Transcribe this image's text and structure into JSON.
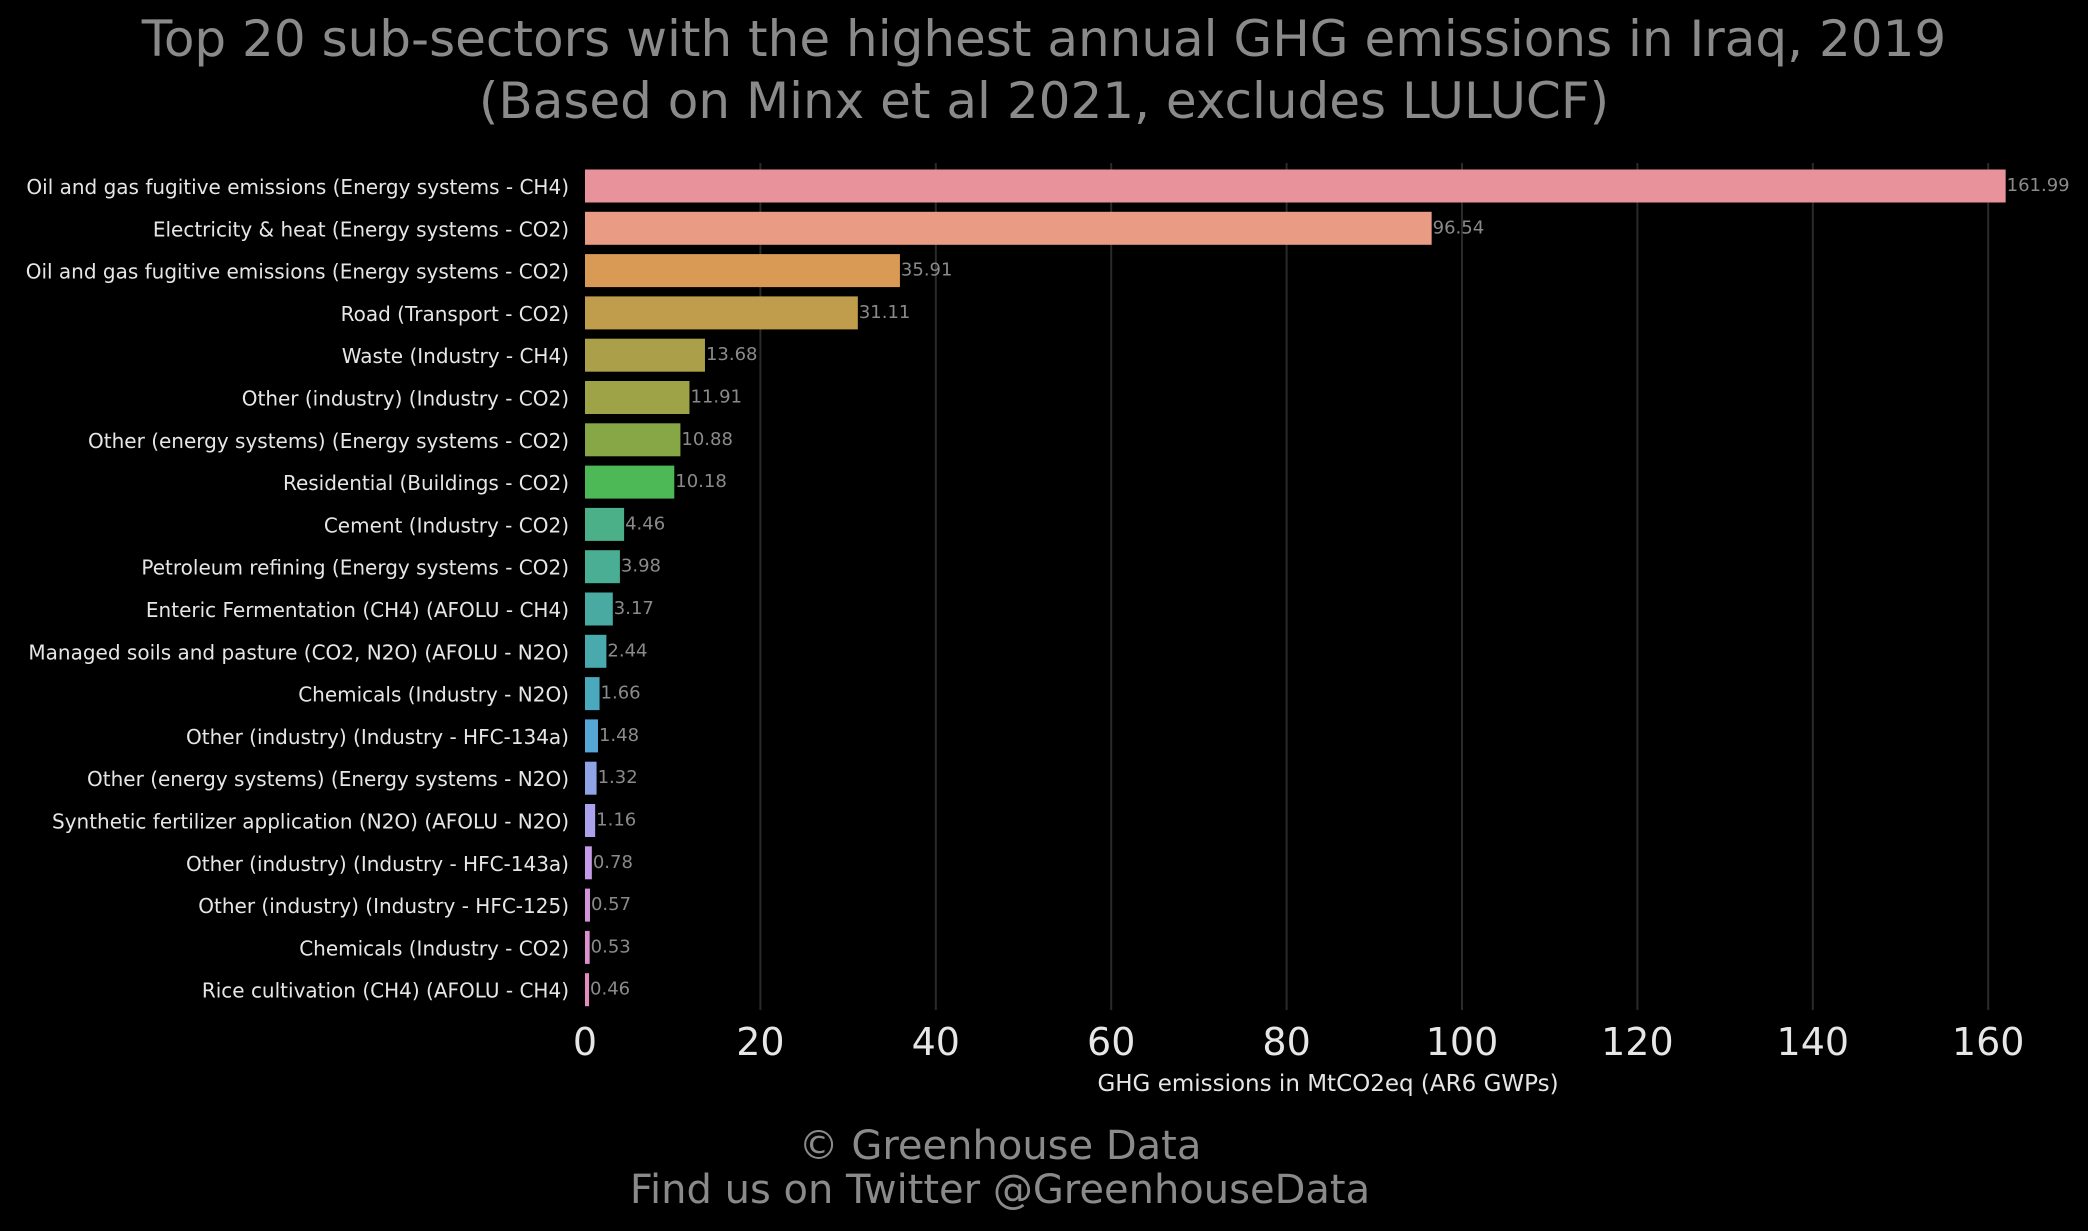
{
  "title_line1": "Top 20 sub-sectors with the highest annual GHG emissions in Iraq, 2019",
  "title_line2": "(Based on Minx et al 2021, excludes LULUCF)",
  "footer_line1": "© Greenhouse Data",
  "footer_line2": "Find us on Twitter @GreenhouseData",
  "colors": {
    "background": "#000000",
    "title": "#8a8a8a",
    "grid": "#2a2a2a",
    "category_label": "#e6e6e6",
    "tick_label": "#e6e6e6",
    "value_label": "#8a8a8a"
  },
  "chart_data": {
    "type": "bar",
    "orientation": "horizontal",
    "title": "Top 20 sub-sectors with the highest annual GHG emissions in Iraq, 2019\n(Based on Minx et al 2021, excludes LULUCF)",
    "xlabel": "GHG emissions in MtCO2eq (AR6 GWPs)",
    "ylabel": "",
    "xlim": [
      0,
      170
    ],
    "xticks": [
      0,
      20,
      40,
      60,
      80,
      100,
      120,
      140,
      160
    ],
    "grid": "vertical",
    "categories": [
      "Oil and gas fugitive emissions (Energy systems - CH4)",
      "Electricity & heat (Energy systems - CO2)",
      "Oil and gas fugitive emissions (Energy systems - CO2)",
      "Road (Transport - CO2)",
      "Waste (Industry - CH4)",
      "Other (industry) (Industry - CO2)",
      "Other (energy systems) (Energy systems - CO2)",
      "Residential (Buildings - CO2)",
      "Cement (Industry - CO2)",
      "Petroleum refining (Energy systems - CO2)",
      "Enteric Fermentation (CH4) (AFOLU - CH4)",
      "Managed soils and pasture (CO2, N2O) (AFOLU - N2O)",
      "Chemicals (Industry - N2O)",
      "Other (industry) (Industry - HFC-134a)",
      "Other (energy systems) (Energy systems - N2O)",
      "Synthetic fertilizer application (N2O) (AFOLU - N2O)",
      "Other (industry) (Industry - HFC-143a)",
      "Other (industry) (Industry - HFC-125)",
      "Chemicals (Industry - CO2)",
      "Rice cultivation (CH4) (AFOLU - CH4)"
    ],
    "values": [
      161.99,
      96.54,
      35.91,
      31.11,
      13.68,
      11.91,
      10.88,
      10.18,
      4.46,
      3.98,
      3.17,
      2.44,
      1.66,
      1.48,
      1.32,
      1.16,
      0.78,
      0.57,
      0.53,
      0.46
    ],
    "value_labels": [
      "161.99",
      "96.54",
      "35.91",
      "31.11",
      "13.68",
      "11.91",
      "10.88",
      "10.18",
      "4.46",
      "3.98",
      "3.17",
      "2.44",
      "1.66",
      "1.48",
      "1.32",
      "1.16",
      "0.78",
      "0.57",
      "0.53",
      "0.46"
    ],
    "bar_colors": [
      "#e8939c",
      "#e99b83",
      "#d89a55",
      "#c09c4d",
      "#ab9f49",
      "#9ea347",
      "#87a746",
      "#4db856",
      "#4bb087",
      "#49ae94",
      "#48aaa0",
      "#49a9ad",
      "#4aa9bd",
      "#57a7d6",
      "#8fa4e6",
      "#aaa2ec",
      "#c59be8",
      "#d494dc",
      "#de8fd0",
      "#e58bbf"
    ]
  }
}
